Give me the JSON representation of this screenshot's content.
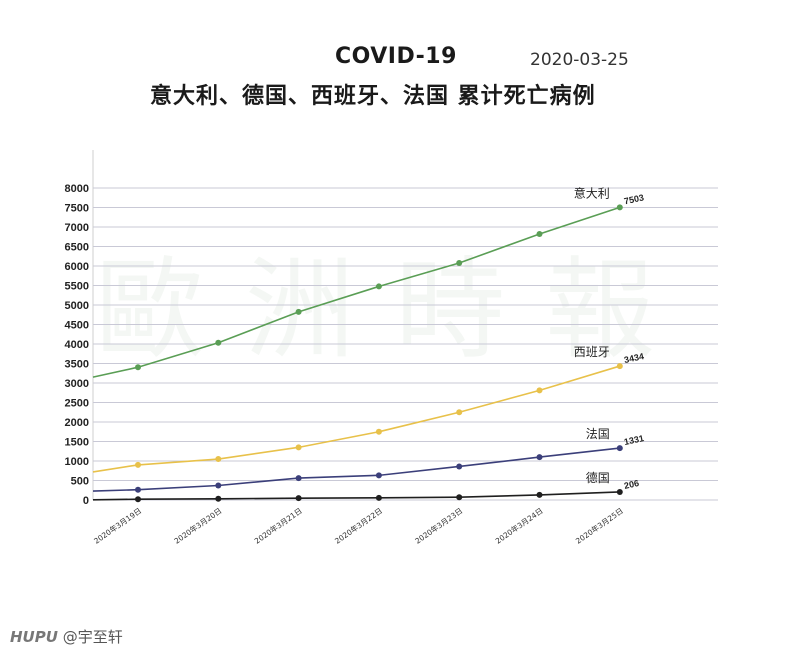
{
  "header": {
    "title": "COVID-19",
    "date": "2020-03-25",
    "subtitle": "意大利、德国、西班牙、法国 累计死亡病例"
  },
  "watermark": "歐洲時報",
  "credit": {
    "brand": "HUPU",
    "user": "@宇至轩"
  },
  "colors": {
    "italy": "#5a9e55",
    "spain": "#e8c14a",
    "france": "#3b3f7a",
    "germany": "#1f1f1f",
    "grid": "#c9c9d6"
  },
  "chart_data": {
    "type": "line",
    "categories": [
      "2020年3月19日",
      "2020年3月20日",
      "2020年3月21日",
      "2020年3月22日",
      "2020年3月23日",
      "2020年3月24日",
      "2020年3月25日"
    ],
    "ylim": [
      0,
      8000
    ],
    "yticks": [
      "0",
      "500",
      "1000",
      "1500",
      "2000",
      "2500",
      "3000",
      "3500",
      "4000",
      "4500",
      "5000",
      "5500",
      "6000",
      "6500",
      "7000",
      "7500",
      "8000"
    ],
    "grid": true,
    "series": [
      {
        "name": "意大利",
        "key": "italy",
        "start": 3150,
        "values": [
          3405,
          4032,
          4825,
          5476,
          6077,
          6820,
          7503
        ],
        "end_label": "7503"
      },
      {
        "name": "西班牙",
        "key": "spain",
        "start": 720,
        "values": [
          900,
          1050,
          1350,
          1750,
          2250,
          2810,
          3434
        ],
        "end_label": "3434"
      },
      {
        "name": "法国",
        "key": "france",
        "start": 230,
        "values": [
          264,
          372,
          562,
          632,
          860,
          1100,
          1331
        ],
        "end_label": "1331"
      },
      {
        "name": "德国",
        "key": "germany",
        "start": 5,
        "values": [
          20,
          31,
          47,
          55,
          72,
          130,
          206
        ],
        "end_label": "206"
      }
    ]
  }
}
